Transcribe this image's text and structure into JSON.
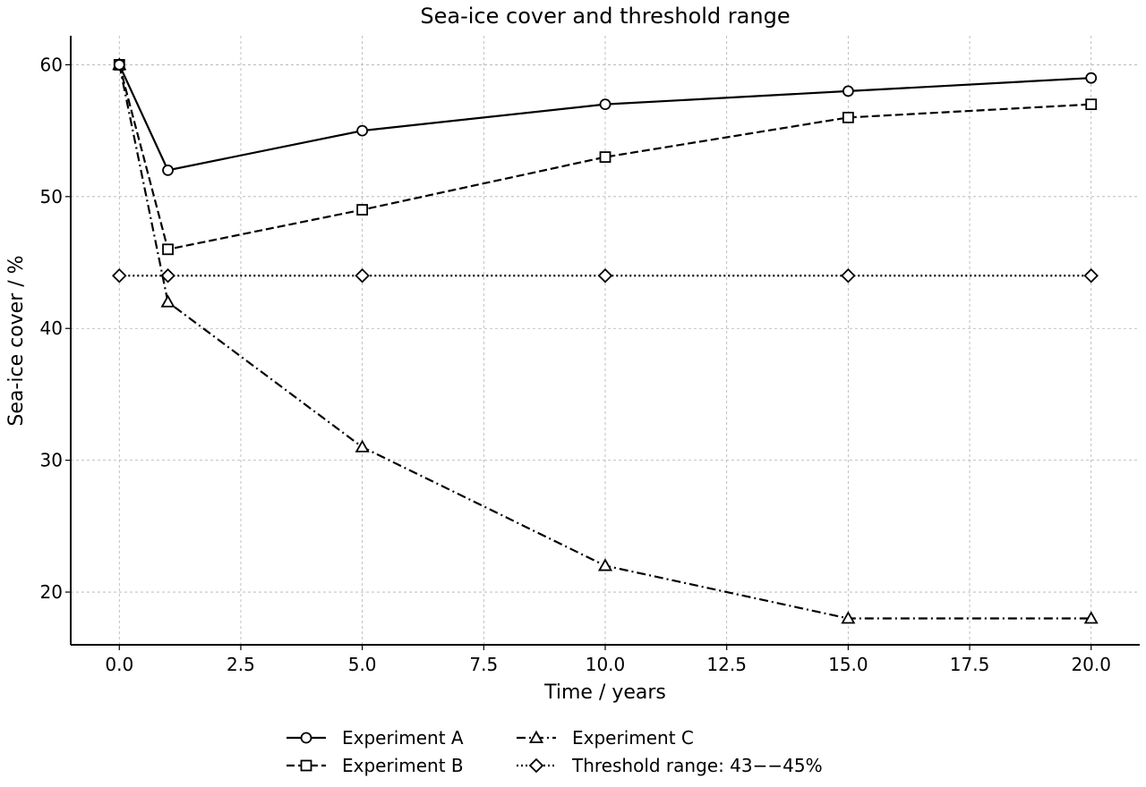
{
  "chart_data": {
    "type": "line",
    "title": "Sea-ice cover and threshold range",
    "xlabel": "Time / years",
    "ylabel": "Sea-ice cover / %",
    "xlim": [
      -1,
      21
    ],
    "ylim": [
      16,
      62.2
    ],
    "x_ticks": [
      0.0,
      2.5,
      5.0,
      7.5,
      10.0,
      12.5,
      15.0,
      17.5,
      20.0
    ],
    "x_tick_labels": [
      "0.0",
      "2.5",
      "5.0",
      "7.5",
      "10.0",
      "12.5",
      "15.0",
      "17.5",
      "20.0"
    ],
    "y_ticks": [
      20,
      30,
      40,
      50,
      60
    ],
    "y_tick_labels": [
      "20",
      "30",
      "40",
      "50",
      "60"
    ],
    "grid": true,
    "legend_position": "bottom-center",
    "series": [
      {
        "name": "Experiment A",
        "x": [
          0,
          1,
          5,
          10,
          15,
          20
        ],
        "values": [
          60,
          52,
          55,
          57,
          58,
          59
        ],
        "marker": "circle",
        "line_style": "solid",
        "color": "#000000"
      },
      {
        "name": "Experiment B",
        "x": [
          0,
          1,
          5,
          10,
          15,
          20
        ],
        "values": [
          60,
          46,
          49,
          53,
          56,
          57
        ],
        "marker": "square",
        "line_style": "dashed",
        "color": "#000000"
      },
      {
        "name": "Experiment C",
        "x": [
          0,
          1,
          5,
          10,
          15,
          20
        ],
        "values": [
          60,
          42,
          31,
          22,
          18,
          18
        ],
        "marker": "triangle",
        "line_style": "dashdot",
        "color": "#000000"
      },
      {
        "name": "Threshold range: 43−−45%",
        "x": [
          0,
          1,
          5,
          10,
          15,
          20
        ],
        "values": [
          44,
          44,
          44,
          44,
          44,
          44
        ],
        "marker": "diamond",
        "line_style": "dotted",
        "color": "#000000"
      }
    ]
  }
}
